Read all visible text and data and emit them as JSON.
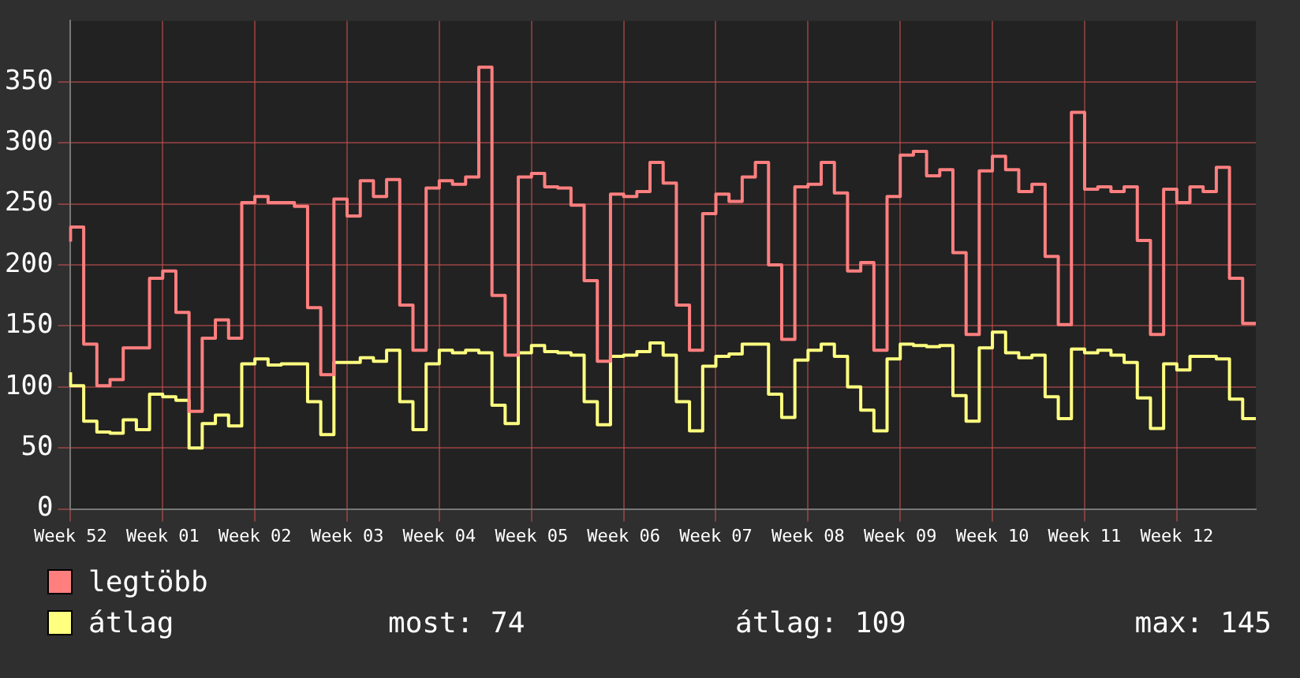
{
  "chart_data": {
    "type": "step",
    "categories": [
      "Week 52",
      null,
      null,
      null,
      null,
      null,
      null,
      "Week 01",
      null,
      null,
      null,
      null,
      null,
      null,
      "Week 02",
      null,
      null,
      null,
      null,
      null,
      null,
      "Week 03",
      null,
      null,
      null,
      null,
      null,
      null,
      "Week 04",
      null,
      null,
      null,
      null,
      null,
      null,
      "Week 05",
      null,
      null,
      null,
      null,
      null,
      null,
      "Week 06",
      null,
      null,
      null,
      null,
      null,
      null,
      "Week 07",
      null,
      null,
      null,
      null,
      null,
      null,
      "Week 08",
      null,
      null,
      null,
      null,
      null,
      null,
      "Week 09",
      null,
      null,
      null,
      null,
      null,
      null,
      "Week 10",
      null,
      null,
      null,
      null,
      null,
      null,
      "Week 11",
      null,
      null,
      null,
      null,
      null,
      null,
      "Week 12",
      null,
      null,
      null,
      null,
      null,
      null
    ],
    "series": [
      {
        "name": "legtöbb",
        "color": "#ff7f7f",
        "values": [
          219,
          231,
          135,
          101,
          106,
          132,
          132,
          189,
          195,
          161,
          80,
          140,
          155,
          140,
          251,
          256,
          251,
          251,
          248,
          165,
          110,
          254,
          240,
          269,
          256,
          270,
          167,
          130,
          263,
          269,
          266,
          272,
          362,
          175,
          126,
          272,
          275,
          264,
          263,
          249,
          187,
          121,
          258,
          256,
          260,
          284,
          267,
          167,
          130,
          242,
          258,
          252,
          272,
          284,
          200,
          139,
          264,
          266,
          284,
          259,
          195,
          202,
          130,
          256,
          290,
          293,
          273,
          278,
          210,
          143,
          277,
          289,
          278,
          260,
          266,
          207,
          151,
          325,
          262,
          264,
          260,
          264,
          220,
          143,
          262,
          251,
          264,
          260,
          280,
          189,
          152
        ]
      },
      {
        "name": "átlag",
        "color": "#ffff80",
        "values": [
          112,
          101,
          72,
          63,
          62,
          73,
          65,
          94,
          92,
          89,
          50,
          70,
          77,
          68,
          119,
          123,
          118,
          119,
          119,
          88,
          61,
          120,
          120,
          124,
          121,
          130,
          88,
          65,
          119,
          130,
          128,
          130,
          128,
          85,
          70,
          128,
          134,
          129,
          128,
          126,
          88,
          69,
          125,
          126,
          129,
          136,
          126,
          88,
          64,
          117,
          125,
          127,
          135,
          135,
          94,
          75,
          122,
          130,
          135,
          125,
          100,
          81,
          64,
          123,
          135,
          134,
          133,
          134,
          93,
          72,
          132,
          145,
          128,
          124,
          126,
          92,
          74,
          131,
          128,
          130,
          126,
          120,
          91,
          66,
          119,
          114,
          125,
          125,
          123,
          90,
          74
        ]
      }
    ],
    "ylim": [
      0,
      400
    ],
    "yticks": [
      0,
      50,
      100,
      150,
      200,
      250,
      300,
      350
    ],
    "grid": true,
    "legend": "bottom",
    "line_style": "solid",
    "marker": "none",
    "annotations": [
      "most: 74",
      "átlag: 109",
      "max: 145"
    ]
  }
}
